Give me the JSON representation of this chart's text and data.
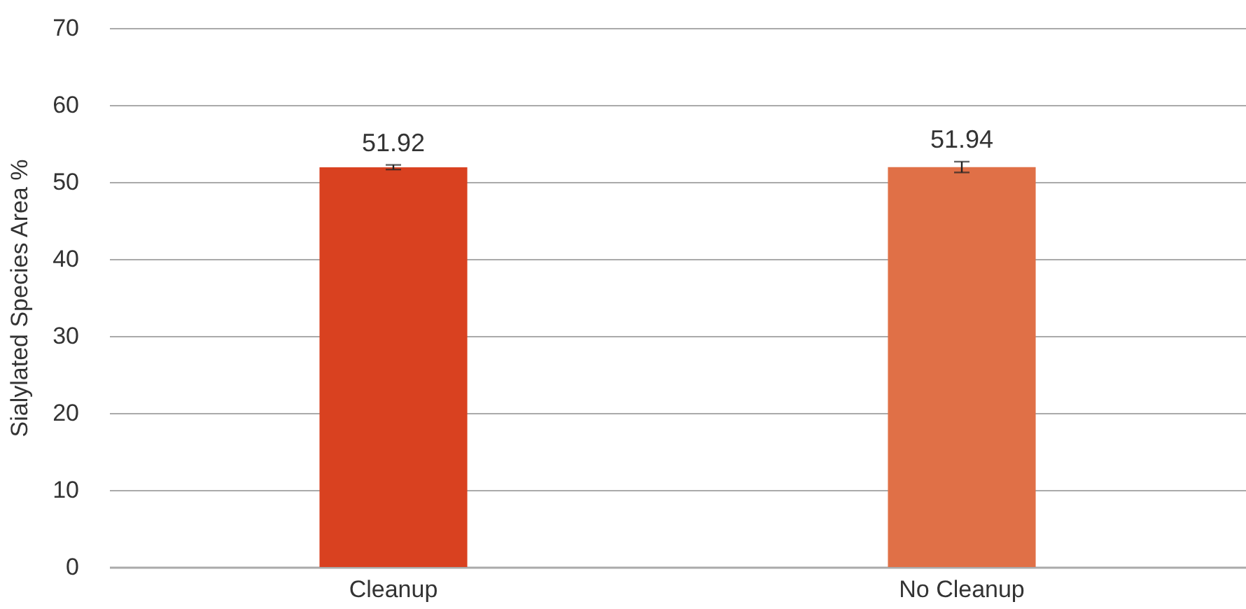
{
  "chart_data": {
    "type": "bar",
    "ylabel": "Sialylated Species Area %",
    "categories": [
      "Cleanup",
      "No Cleanup"
    ],
    "values": [
      51.92,
      51.94
    ],
    "colors": [
      "#d94120",
      "#e07047"
    ],
    "errors": [
      0.3,
      0.7
    ],
    "data_labels": true,
    "ylim": [
      0,
      70
    ],
    "yticks": [
      0,
      10,
      20,
      30,
      40,
      50,
      60,
      70
    ],
    "grid": "y"
  }
}
